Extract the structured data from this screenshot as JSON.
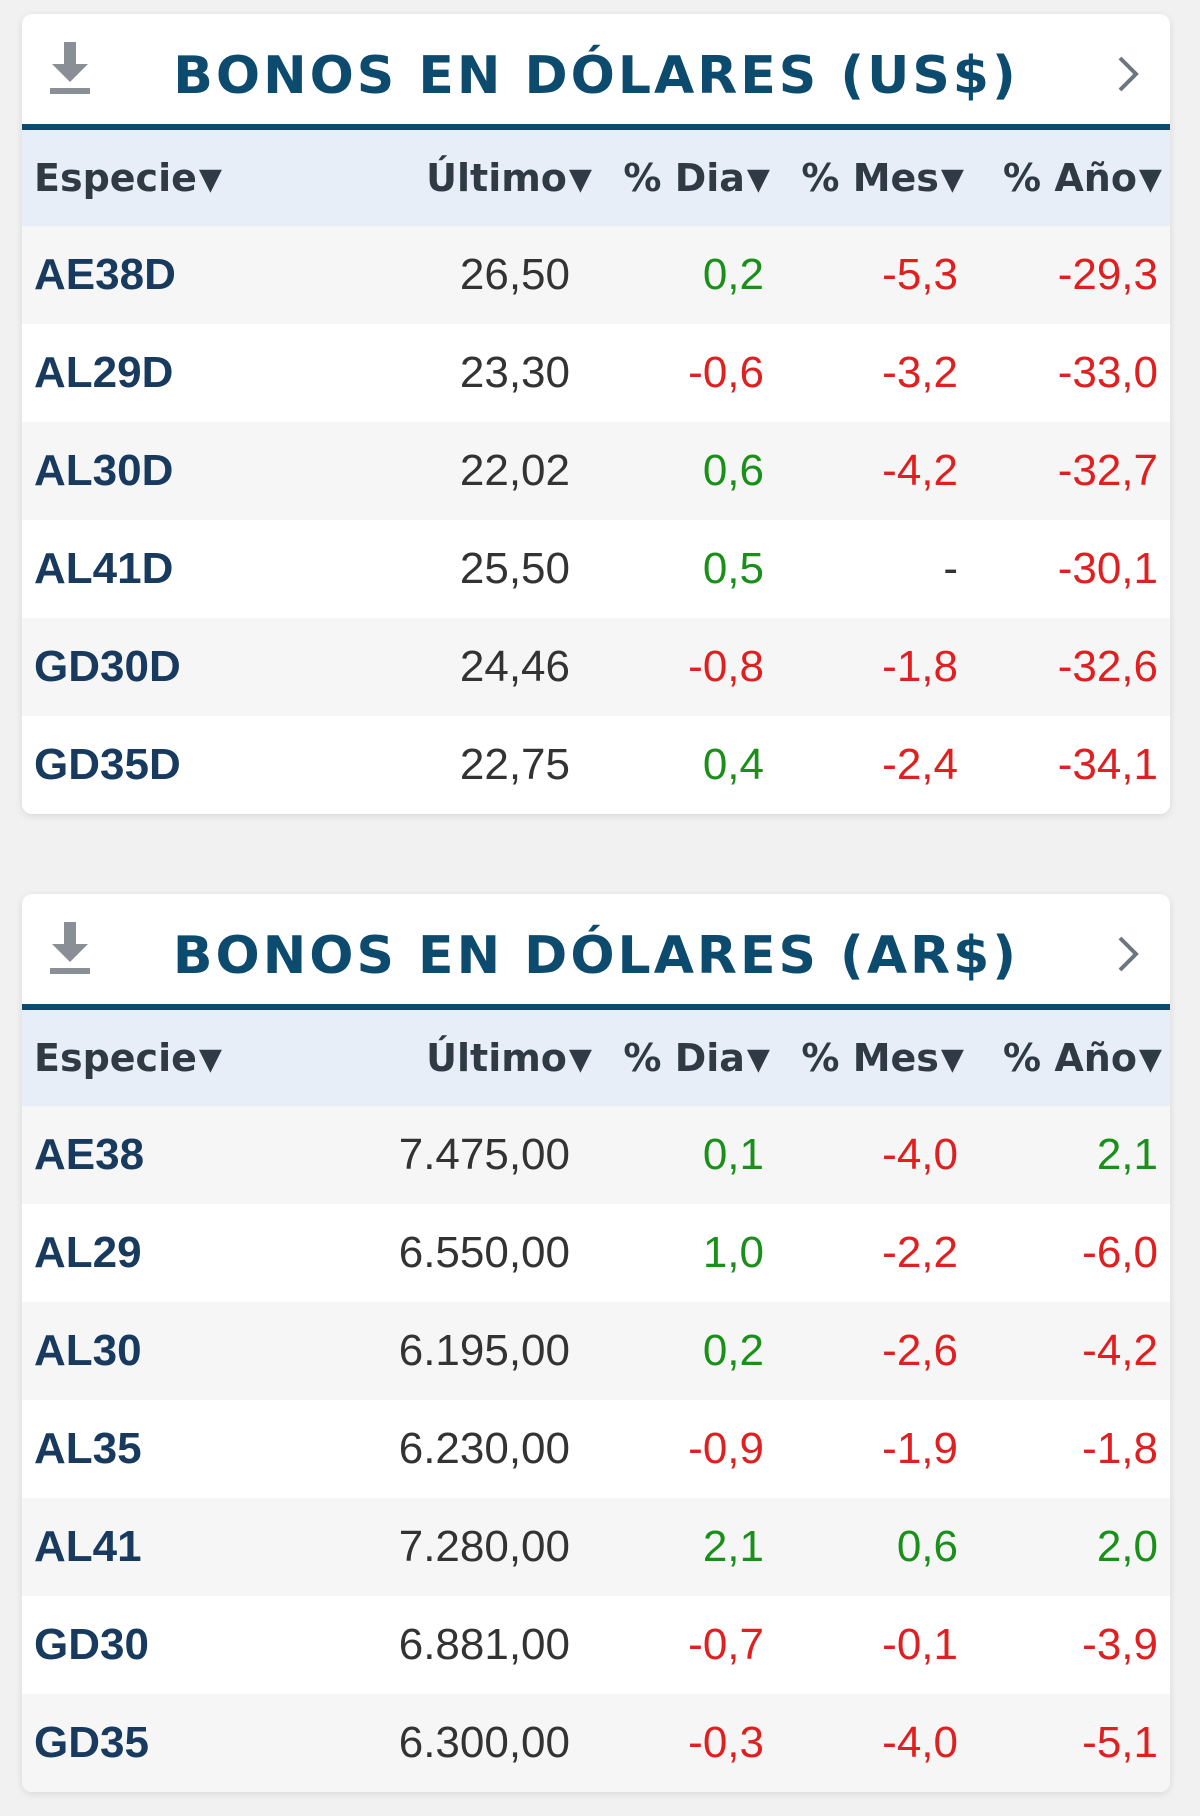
{
  "colors": {
    "accent": "#0c4a6e",
    "positive": "#1a8f1a",
    "negative": "#e02020",
    "header_bg": "#e8eef7"
  },
  "icons": {
    "download": "download-icon",
    "next": "chevron-right-icon"
  },
  "columns": [
    "Especie",
    "Último",
    "% Dia",
    "% Mes",
    "% Año"
  ],
  "sort_arrow": "▼",
  "panels": [
    {
      "title": "BONOS EN DÓLARES (US$)",
      "rows": [
        {
          "especie": "AE38D",
          "ultimo": "26,50",
          "dia": "0,2",
          "mes": "-5,3",
          "anio": "-29,3"
        },
        {
          "especie": "AL29D",
          "ultimo": "23,30",
          "dia": "-0,6",
          "mes": "-3,2",
          "anio": "-33,0"
        },
        {
          "especie": "AL30D",
          "ultimo": "22,02",
          "dia": "0,6",
          "mes": "-4,2",
          "anio": "-32,7"
        },
        {
          "especie": "AL41D",
          "ultimo": "25,50",
          "dia": "0,5",
          "mes": "-",
          "anio": "-30,1"
        },
        {
          "especie": "GD30D",
          "ultimo": "24,46",
          "dia": "-0,8",
          "mes": "-1,8",
          "anio": "-32,6"
        },
        {
          "especie": "GD35D",
          "ultimo": "22,75",
          "dia": "0,4",
          "mes": "-2,4",
          "anio": "-34,1"
        }
      ]
    },
    {
      "title": "BONOS EN DÓLARES (AR$)",
      "rows": [
        {
          "especie": "AE38",
          "ultimo": "7.475,00",
          "dia": "0,1",
          "mes": "-4,0",
          "anio": "2,1"
        },
        {
          "especie": "AL29",
          "ultimo": "6.550,00",
          "dia": "1,0",
          "mes": "-2,2",
          "anio": "-6,0"
        },
        {
          "especie": "AL30",
          "ultimo": "6.195,00",
          "dia": "0,2",
          "mes": "-2,6",
          "anio": "-4,2"
        },
        {
          "especie": "AL35",
          "ultimo": "6.230,00",
          "dia": "-0,9",
          "mes": "-1,9",
          "anio": "-1,8"
        },
        {
          "especie": "AL41",
          "ultimo": "7.280,00",
          "dia": "2,1",
          "mes": "0,6",
          "anio": "2,0"
        },
        {
          "especie": "GD30",
          "ultimo": "6.881,00",
          "dia": "-0,7",
          "mes": "-0,1",
          "anio": "-3,9"
        },
        {
          "especie": "GD35",
          "ultimo": "6.300,00",
          "dia": "-0,3",
          "mes": "-4,0",
          "anio": "-5,1"
        }
      ]
    }
  ]
}
